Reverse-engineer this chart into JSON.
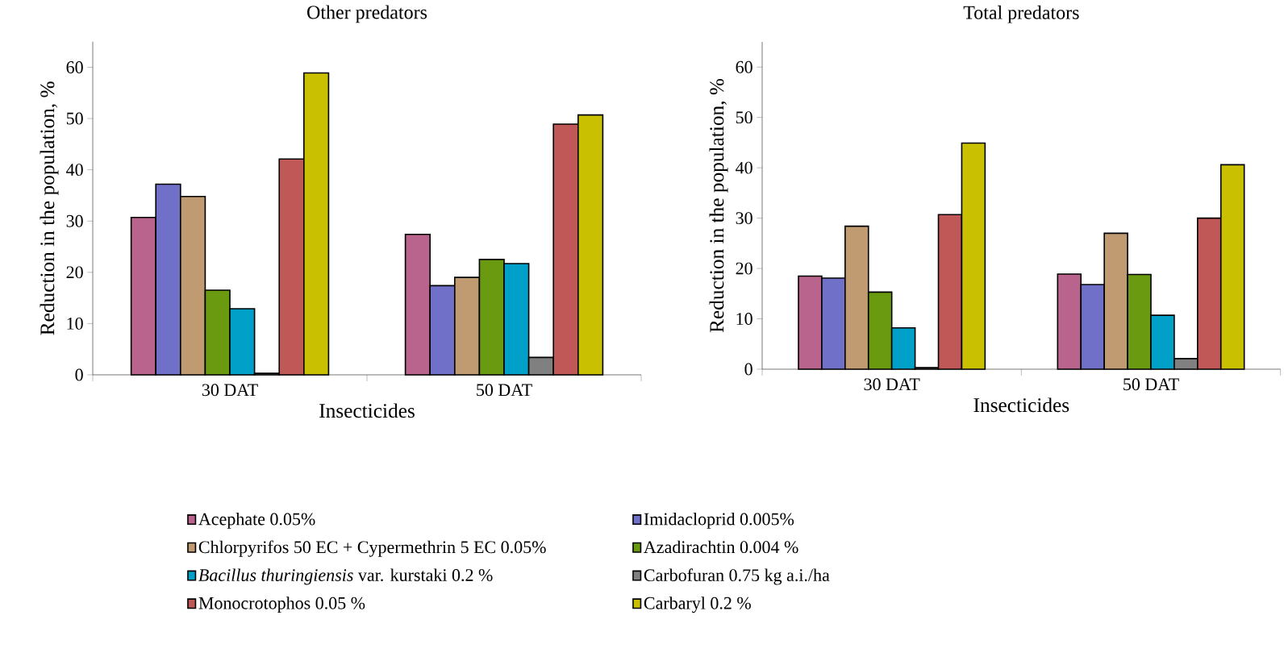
{
  "chart_data": [
    {
      "type": "bar",
      "title": "Other predators",
      "xlabel": "Insecticides",
      "ylabel": "Reduction in the population, %",
      "categories": [
        "30 DAT",
        "50 DAT"
      ],
      "ylim": [
        0,
        65
      ],
      "yticks": [
        0,
        10,
        20,
        30,
        40,
        50,
        60
      ],
      "legend": "bottom",
      "series": [
        {
          "name": "Acephate 0.05%",
          "color": "#b8648c",
          "values": [
            30.7,
            27.4
          ]
        },
        {
          "name": "Imidacloprid 0.005%",
          "color": "#7070c8",
          "values": [
            37.2,
            17.4
          ]
        },
        {
          "name": "Chlorpyrifos 50 EC + Cypermethrin 5 EC 0.05%",
          "color": "#c09a70",
          "values": [
            34.8,
            19.0
          ]
        },
        {
          "name": "Azadirachtin 0.004 %",
          "color": "#6a9a10",
          "values": [
            16.5,
            22.5
          ]
        },
        {
          "name": "*Bacillus thuringiensis* var. kurstaki 0.2 %",
          "color": "#00a0c8",
          "values": [
            12.9,
            21.7
          ]
        },
        {
          "name": "Carbofuran 0.75 kg a.i./ha",
          "color": "#808080",
          "values": [
            0.3,
            3.4
          ]
        },
        {
          "name": "Monocrotophos 0.05 %",
          "color": "#c05858",
          "values": [
            42.1,
            48.9
          ]
        },
        {
          "name": "Carbaryl 0.2 %",
          "color": "#c8c000",
          "values": [
            58.9,
            50.7
          ]
        }
      ]
    },
    {
      "type": "bar",
      "title": "Total predators",
      "xlabel": "Insecticides",
      "ylabel": "Reduction in the population, %",
      "categories": [
        "30 DAT",
        "50 DAT"
      ],
      "ylim": [
        0,
        65
      ],
      "yticks": [
        0,
        10,
        20,
        30,
        40,
        50,
        60
      ],
      "series": [
        {
          "color": "#b8648c",
          "values": [
            18.5,
            18.9
          ]
        },
        {
          "color": "#7070c8",
          "values": [
            18.1,
            16.8
          ]
        },
        {
          "color": "#c09a70",
          "values": [
            28.4,
            27.0
          ]
        },
        {
          "color": "#6a9a10",
          "values": [
            15.3,
            18.8
          ]
        },
        {
          "color": "#00a0c8",
          "values": [
            8.2,
            10.7
          ]
        },
        {
          "color": "#808080",
          "values": [
            0.3,
            2.1
          ]
        },
        {
          "color": "#c05858",
          "values": [
            30.7,
            30.0
          ]
        },
        {
          "color": "#c8c000",
          "values": [
            44.9,
            40.6
          ]
        }
      ]
    }
  ]
}
